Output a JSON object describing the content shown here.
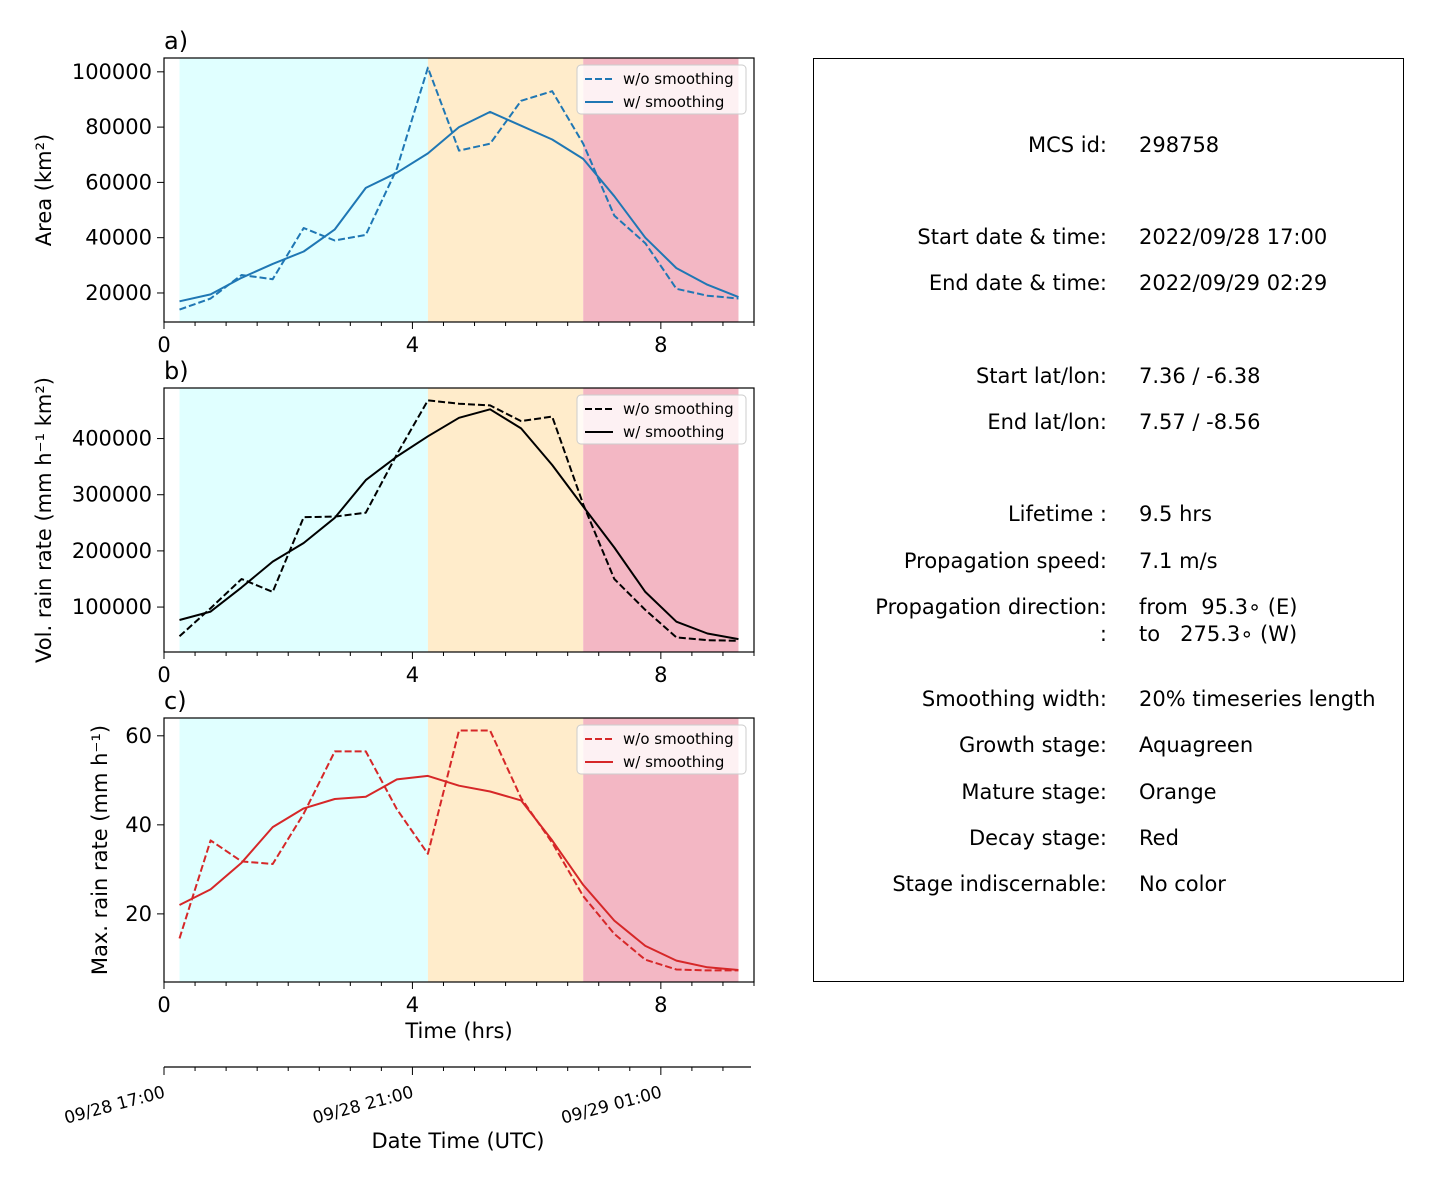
{
  "x_axis": {
    "label": "Time (hrs)",
    "ticks": [
      "0",
      "4",
      "8"
    ],
    "date_label": "Date Time (UTC)",
    "date_ticks": [
      "09/28 17:00",
      "09/28 21:00",
      "09/29 01:00"
    ]
  },
  "stages": {
    "growth": {
      "start": 0.25,
      "end": 4.25,
      "color": "#e0ffff"
    },
    "mature": {
      "start": 4.25,
      "end": 6.75,
      "color": "#ffeccb"
    },
    "decay": {
      "start": 6.75,
      "end": 9.25,
      "color": "#f3b7c4"
    }
  },
  "legend": {
    "raw": "w/o smoothing",
    "smooth": "w/ smoothing"
  },
  "chart_data": [
    {
      "type": "line",
      "panel_label": "a)",
      "ylabel": "Area  (km²)",
      "xlim": [
        0,
        9.5
      ],
      "ylim": [
        9500,
        105000
      ],
      "yticks": [
        "20000",
        "40000",
        "60000",
        "80000",
        "100000"
      ],
      "color": "#1f77b4",
      "legend_position": "top-right",
      "x": [
        0.25,
        0.75,
        1.25,
        1.75,
        2.25,
        2.75,
        3.25,
        3.75,
        4.25,
        4.75,
        5.25,
        5.75,
        6.25,
        6.75,
        7.25,
        7.75,
        8.25,
        8.75,
        9.25
      ],
      "series": [
        {
          "name": "w/o smoothing",
          "style": "dashed",
          "values": [
            14000,
            18000,
            26500,
            25000,
            43500,
            39000,
            41000,
            65000,
            101500,
            71500,
            74000,
            89500,
            93000,
            74000,
            48000,
            38000,
            21500,
            19000,
            18000
          ]
        },
        {
          "name": "w/ smoothing",
          "style": "solid",
          "values": [
            17000,
            19500,
            25500,
            30500,
            35000,
            43000,
            58000,
            63500,
            70500,
            80000,
            85500,
            80500,
            75500,
            68500,
            55000,
            40000,
            29000,
            23000,
            18500
          ]
        }
      ]
    },
    {
      "type": "line",
      "panel_label": "b)",
      "ylabel": "Vol. rain rate (mm h⁻¹ km²)",
      "xlim": [
        0,
        9.5
      ],
      "ylim": [
        20000,
        490000
      ],
      "yticks": [
        "100000",
        "200000",
        "300000",
        "400000"
      ],
      "color": "#000000",
      "legend_position": "top-right",
      "x": [
        0.25,
        0.75,
        1.25,
        1.75,
        2.25,
        2.75,
        3.25,
        3.75,
        4.25,
        4.75,
        5.25,
        5.75,
        6.25,
        6.75,
        7.25,
        7.75,
        8.25,
        8.75,
        9.25
      ],
      "series": [
        {
          "name": "w/o smoothing",
          "style": "dashed",
          "values": [
            48000,
            98000,
            150000,
            127000,
            260000,
            261000,
            268000,
            372000,
            468000,
            462000,
            459000,
            431000,
            439000,
            283000,
            150000,
            95000,
            46000,
            41000,
            40000
          ]
        },
        {
          "name": "w/ smoothing",
          "style": "solid",
          "values": [
            77000,
            92000,
            135000,
            181000,
            214000,
            259000,
            326000,
            368000,
            404000,
            437000,
            452000,
            418000,
            353000,
            279000,
            206000,
            127000,
            74000,
            53000,
            43000
          ]
        }
      ]
    },
    {
      "type": "line",
      "panel_label": "c)",
      "ylabel": "Max. rain rate  (mm h⁻¹)",
      "xlim": [
        0,
        9.5
      ],
      "ylim": [
        4.7,
        64
      ],
      "yticks": [
        "20",
        "40",
        "60"
      ],
      "color": "#d62728",
      "legend_position": "top-right",
      "x": [
        0.25,
        0.75,
        1.25,
        1.75,
        2.25,
        2.75,
        3.25,
        3.75,
        4.25,
        4.75,
        5.25,
        5.75,
        6.25,
        6.75,
        7.25,
        7.75,
        8.25,
        8.75,
        9.25
      ],
      "series": [
        {
          "name": "w/o smoothing",
          "style": "dashed",
          "values": [
            14.5,
            36.5,
            31.8,
            31.2,
            42.5,
            56.5,
            56.5,
            43.5,
            33.5,
            61.2,
            61.2,
            46.0,
            36.0,
            24.0,
            15.5,
            9.7,
            7.5,
            7.3,
            7.3
          ]
        },
        {
          "name": "w/ smoothing",
          "style": "solid",
          "values": [
            22.0,
            25.5,
            31.5,
            39.5,
            43.7,
            45.8,
            46.3,
            50.2,
            51.0,
            48.8,
            47.5,
            45.5,
            36.5,
            26.5,
            18.5,
            12.8,
            9.5,
            8.0,
            7.4
          ]
        }
      ]
    }
  ],
  "info": [
    {
      "label": "MCS id:",
      "value": "298758"
    },
    {
      "label": "Start date & time:",
      "value": "2022/09/28 17:00"
    },
    {
      "label": "End date & time:",
      "value": "2022/09/29 02:29"
    },
    {
      "label": "Start lat/lon:",
      "value": "7.36 / -6.38"
    },
    {
      "label": "End lat/lon:",
      "value": "7.57 / -8.56"
    },
    {
      "label": "Lifetime :",
      "value": "9.5 hrs"
    },
    {
      "label": "Propagation speed:",
      "value": "7.1 m/s"
    },
    {
      "label": "Propagation direction:",
      "value": "from  95.3∘ (E)"
    },
    {
      "label": ":",
      "value": "to   275.3∘ (W)"
    },
    {
      "label": "Smoothing width:",
      "value": "20% timeseries length"
    },
    {
      "label": "Growth stage:",
      "value": "Aquagreen"
    },
    {
      "label": "Mature stage:",
      "value": "Orange"
    },
    {
      "label": "Decay stage:",
      "value": "Red"
    },
    {
      "label": "Stage indiscernable:",
      "value": "No color"
    }
  ]
}
